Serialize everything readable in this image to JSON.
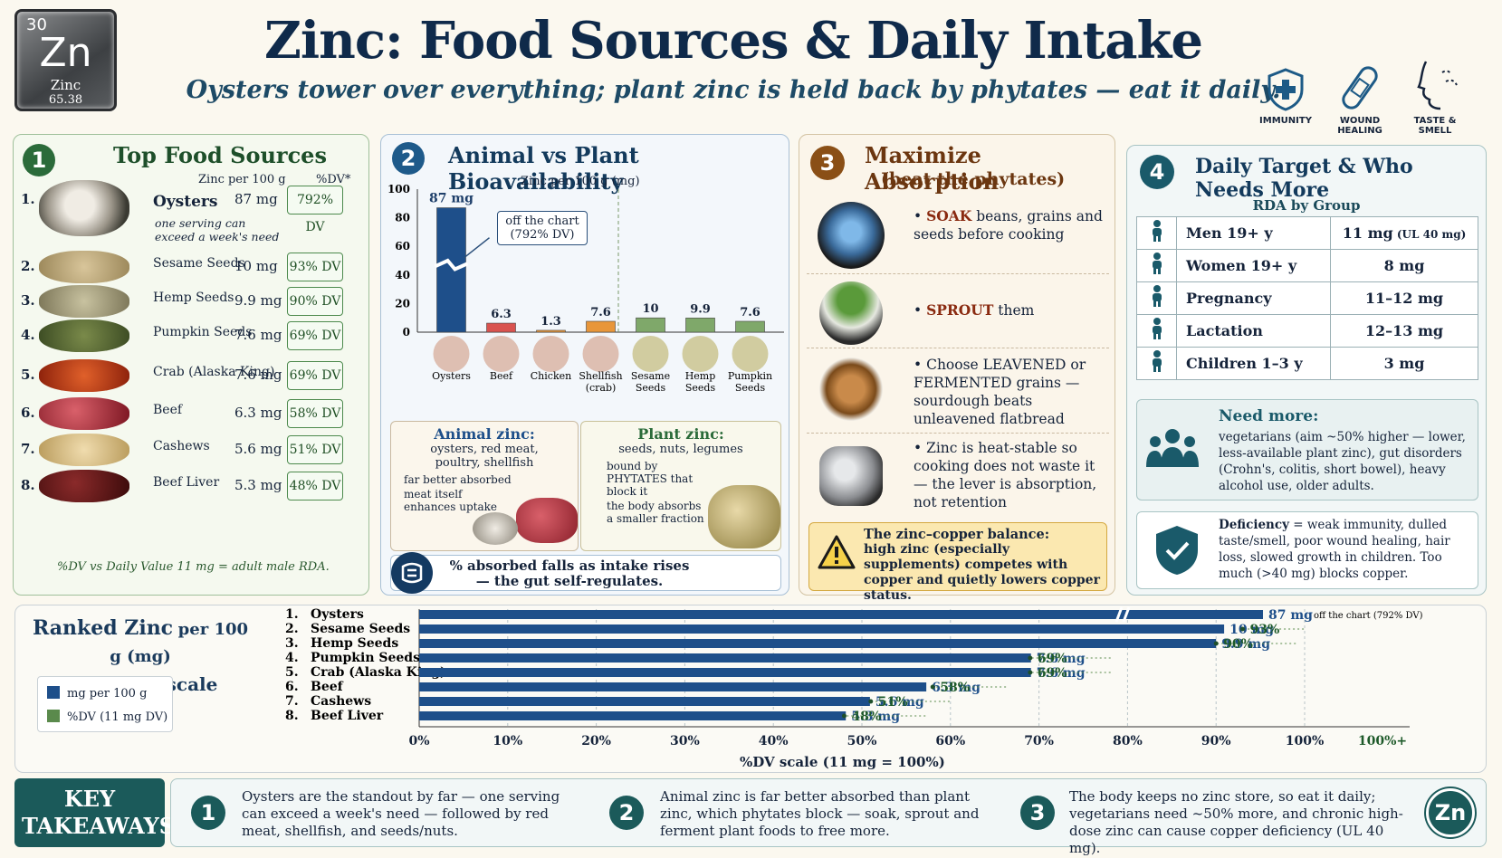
{
  "header": {
    "element_tile": {
      "number": "30",
      "symbol": "Zn",
      "name": "Zinc",
      "mass": "65.38"
    },
    "title": "Zinc: Food Sources & Daily Intake",
    "subtitle": "Oysters tower over everything; plant zinc is held back by phytates — eat it daily.",
    "badges": [
      {
        "label": "IMMUNITY",
        "icon": "shield-plus-icon"
      },
      {
        "label": "WOUND HEALING",
        "icon": "bandage-icon"
      },
      {
        "label": "TASTE & SMELL",
        "icon": "face-profile-icon"
      }
    ]
  },
  "panel1": {
    "number": "1",
    "title": "Top Food Sources",
    "col_zinc": "Zinc per 100 g",
    "col_dv": "%DV*",
    "items": [
      {
        "rank": "1.",
        "name": "Oysters",
        "amount": "87 mg",
        "dv": "792% DV",
        "note": "one serving can exceed a week's need"
      },
      {
        "rank": "2.",
        "name": "Sesame Seeds",
        "amount": "10 mg",
        "dv": "93% DV"
      },
      {
        "rank": "3.",
        "name": "Hemp Seeds",
        "amount": "9.9 mg",
        "dv": "90% DV"
      },
      {
        "rank": "4.",
        "name": "Pumpkin Seeds",
        "amount": "7.6 mg",
        "dv": "69% DV"
      },
      {
        "rank": "5.",
        "name": "Crab (Alaska King)",
        "amount": "7.6 mg",
        "dv": "69% DV"
      },
      {
        "rank": "6.",
        "name": "Beef",
        "amount": "6.3 mg",
        "dv": "58% DV"
      },
      {
        "rank": "7.",
        "name": "Cashews",
        "amount": "5.6 mg",
        "dv": "51% DV"
      },
      {
        "rank": "8.",
        "name": "Beef Liver",
        "amount": "5.3 mg",
        "dv": "48% DV"
      }
    ],
    "footnote": "%DV vs Daily Value 11 mg = adult male RDA."
  },
  "panel2": {
    "number": "2",
    "title": "Animal vs Plant Bioavailability",
    "axis_label": "Zinc per 100 g (mg)",
    "callout": "off the chart (792% DV)",
    "animal": {
      "title": "Animal zinc:",
      "sub": "oysters, red meat, poultry, shellfish",
      "bullets": [
        "far better absorbed",
        "meat itself enhances uptake"
      ]
    },
    "plant": {
      "title": "Plant zinc:",
      "sub": "seeds, nuts, legumes",
      "bullets": [
        "bound by PHYTATES that block it",
        "the body absorbs a smaller fraction"
      ]
    },
    "gut_note": "% absorbed falls as intake rises — the gut self-regulates."
  },
  "panel3": {
    "number": "3",
    "title": "Maximize Absorption",
    "subtitle": "(beat the phytates)",
    "tips": [
      {
        "lead": "SOAK",
        "rest": " beans, grains and seeds before cooking"
      },
      {
        "lead": "SPROUT",
        "rest": " them"
      },
      {
        "lead": "",
        "rest": "Choose LEAVENED or FERMENTED grains — sourdough beats unleavened flatbread"
      },
      {
        "lead": "",
        "rest": "Zinc is heat-stable so cooking does not waste it — the lever is absorption, not retention"
      }
    ],
    "warning_title": "The zinc–copper balance:",
    "warning_text": "high zinc (especially supplements) competes with copper and quietly lowers copper status."
  },
  "panel4": {
    "number": "4",
    "title": "Daily Target & Who Needs More",
    "table_title": "RDA by Group",
    "rows": [
      {
        "group": "Men 19+ y",
        "rda": "11 mg",
        "extra": "(UL 40 mg)"
      },
      {
        "group": "Women 19+ y",
        "rda": "8 mg",
        "extra": ""
      },
      {
        "group": "Pregnancy",
        "rda": "11–12 mg",
        "extra": ""
      },
      {
        "group": "Lactation",
        "rda": "12–13 mg",
        "extra": ""
      },
      {
        "group": "Children 1–3 y",
        "rda": "3 mg",
        "extra": ""
      }
    ],
    "need_more_title": "Need more:",
    "need_more_text": "vegetarians (aim ~50% higher — lower, less-available plant zinc), gut disorders (Crohn's, colitis, short bowel), heavy alcohol use, older adults.",
    "deficiency_lead": "Deficiency",
    "deficiency_text": " = weak immunity, dulled taste/smell, poor wound healing, hair loss, slowed growth in children. Too much (>40 mg) blocks copper."
  },
  "ranked": {
    "title_a": "Ranked Zinc",
    "title_b": "per 100 g (mg)",
    "title_c": "with %DV scale",
    "legend_mg": "mg per 100 g",
    "legend_dv": "%DV (11 mg DV)",
    "x_axis_label": "%DV scale (11 mg = 100%)",
    "offchart_note": "off the chart (792% DV)"
  },
  "takeaways": {
    "label": "KEY TAKEAWAYS",
    "items": [
      {
        "num": "1",
        "text": "Oysters are the standout by far — one serving can exceed a week's need — followed by red meat, shellfish, and seeds/nuts."
      },
      {
        "num": "2",
        "text": "Animal zinc is far better absorbed than plant zinc, which phytates block — soak, sprout and ferment plant foods to free more."
      },
      {
        "num": "3",
        "text": "The body keeps no zinc store, so eat it daily; vegetarians need ~50% more, and chronic high-dose zinc can cause copper deficiency (UL 40 mg)."
      }
    ],
    "badge": "Zn"
  },
  "colors": {
    "navy": "#1e4f8a",
    "green": "#5a8a4c",
    "animal_bar": "#d9534f",
    "plant_bar": "#7fa86a"
  },
  "chart_data": [
    {
      "type": "bar",
      "ylabel": "Zinc per 100 g (mg)",
      "ylim": [
        0,
        100
      ],
      "yticks": [
        0,
        20,
        40,
        60,
        80,
        100
      ],
      "categories": [
        "Oysters",
        "Beef",
        "Chicken",
        "Shellfish (crab)",
        "Sesame Seeds",
        "Hemp Seeds",
        "Pumpkin Seeds"
      ],
      "values": [
        87,
        6.3,
        1.3,
        7.6,
        10,
        9.9,
        7.6
      ],
      "labels": [
        "87 mg",
        "6.3",
        "1.3",
        "7.6",
        "10",
        "9.9",
        "7.6"
      ],
      "groups": [
        "animal",
        "animal",
        "animal",
        "animal",
        "plant",
        "plant",
        "plant"
      ]
    },
    {
      "type": "bar",
      "orientation": "horizontal",
      "xlabel": "%DV scale (11 mg = 100%)",
      "xticks": [
        "0%",
        "10%",
        "20%",
        "30%",
        "40%",
        "50%",
        "60%",
        "70%",
        "80%",
        "90%",
        "100%",
        "100%+"
      ],
      "categories": [
        "Oysters",
        "Sesame Seeds",
        "Hemp Seeds",
        "Pumpkin Seeds",
        "Crab (Alaska King)",
        "Beef",
        "Cashews",
        "Beef Liver"
      ],
      "ranks": [
        "1.",
        "2.",
        "3.",
        "4.",
        "5.",
        "6.",
        "7.",
        "8."
      ],
      "series": [
        {
          "name": "mg per 100 g",
          "values": [
            87,
            10,
            9.9,
            7.6,
            7.6,
            6.3,
            5.6,
            5.3
          ],
          "labels": [
            "87 mg",
            "10 mg",
            "9.9 mg",
            "7.6 mg",
            "7.6 mg",
            "6.3 mg",
            "5.6 mg",
            "5.3 mg"
          ]
        },
        {
          "name": "%DV (11 mg DV)",
          "values": [
            792,
            93,
            90,
            69,
            69,
            58,
            51,
            48
          ],
          "labels": [
            "",
            "93%",
            "90%",
            "69%",
            "69%",
            "58%",
            "51%",
            "48%"
          ]
        }
      ]
    }
  ]
}
